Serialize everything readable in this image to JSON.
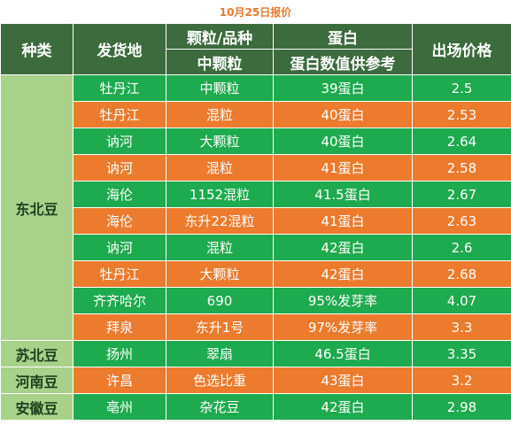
{
  "title": "10月25日报价",
  "headers": {
    "type": "种类",
    "origin": "发货地",
    "grain_top": "颗粒/品种",
    "grain_sub": "中颗粒",
    "protein_top": "蛋白",
    "protein_sub": "蛋白数值供参考",
    "price": "出场价格"
  },
  "categories": [
    {
      "name": "东北豆",
      "rows": [
        {
          "origin": "牡丹江",
          "grain": "中颗粒",
          "protein": "39蛋白",
          "price": "2.5",
          "color": "green"
        },
        {
          "origin": "牡丹江",
          "grain": "混粒",
          "protein": "40蛋白",
          "price": "2.53",
          "color": "orange"
        },
        {
          "origin": "讷河",
          "grain": "大颗粒",
          "protein": "40蛋白",
          "price": "2.64",
          "color": "green"
        },
        {
          "origin": "讷河",
          "grain": "混粒",
          "protein": "41蛋白",
          "price": "2.58",
          "color": "orange"
        },
        {
          "origin": "海伦",
          "grain": "1152混粒",
          "protein": "41.5蛋白",
          "price": "2.67",
          "color": "green"
        },
        {
          "origin": "海伦",
          "grain": "东升22混粒",
          "protein": "41蛋白",
          "price": "2.63",
          "color": "orange"
        },
        {
          "origin": "讷河",
          "grain": "混粒",
          "protein": "42蛋白",
          "price": "2.6",
          "color": "green"
        },
        {
          "origin": "牡丹江",
          "grain": "大颗粒",
          "protein": "42蛋白",
          "price": "2.68",
          "color": "orange"
        },
        {
          "origin": "齐齐哈尔",
          "grain": "690",
          "protein": "95%发芽率",
          "price": "4.07",
          "color": "green"
        },
        {
          "origin": "拜泉",
          "grain": "东升1号",
          "protein": "97%发芽率",
          "price": "3.3",
          "color": "orange"
        }
      ]
    },
    {
      "name": "苏北豆",
      "rows": [
        {
          "origin": "扬州",
          "grain": "翠扇",
          "protein": "46.5蛋白",
          "price": "3.35",
          "color": "green"
        }
      ]
    },
    {
      "name": "河南豆",
      "rows": [
        {
          "origin": "许昌",
          "grain": "色选比重",
          "protein": "43蛋白",
          "price": "3.2",
          "color": "orange"
        }
      ]
    },
    {
      "name": "安徽豆",
      "rows": [
        {
          "origin": "亳州",
          "grain": "杂花豆",
          "protein": "42蛋白",
          "price": "2.98",
          "color": "green"
        }
      ]
    }
  ],
  "colors": {
    "header_bg": "#3c6b3d",
    "category_bg": "#a8d18a",
    "row_green": "#1eaa4e",
    "row_orange": "#ec7b2e",
    "title_text": "#e8792e"
  }
}
